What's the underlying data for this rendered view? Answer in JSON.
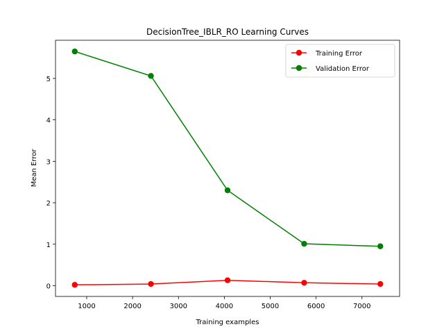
{
  "chart_data": {
    "type": "line",
    "title": "DecisionTree_IBLR_RO Learning Curves",
    "xlabel": "Training examples",
    "ylabel": "Mean Error",
    "x": [
      740,
      2400,
      4070,
      5740,
      7400
    ],
    "xlim": [
      320,
      7820
    ],
    "ylim": [
      -0.26,
      5.92
    ],
    "xticks": [
      1000,
      2000,
      3000,
      4000,
      5000,
      6000,
      7000
    ],
    "yticks": [
      0,
      1,
      2,
      3,
      4,
      5
    ],
    "grid": false,
    "legend_position": "top-right",
    "series": [
      {
        "name": "Training Error",
        "color": "#ff0000",
        "marker": "circle",
        "values": [
          0.02,
          0.04,
          0.13,
          0.07,
          0.04
        ]
      },
      {
        "name": "Validation Error",
        "color": "#008000",
        "marker": "circle",
        "values": [
          5.65,
          5.06,
          2.3,
          1.01,
          0.95
        ]
      }
    ]
  }
}
